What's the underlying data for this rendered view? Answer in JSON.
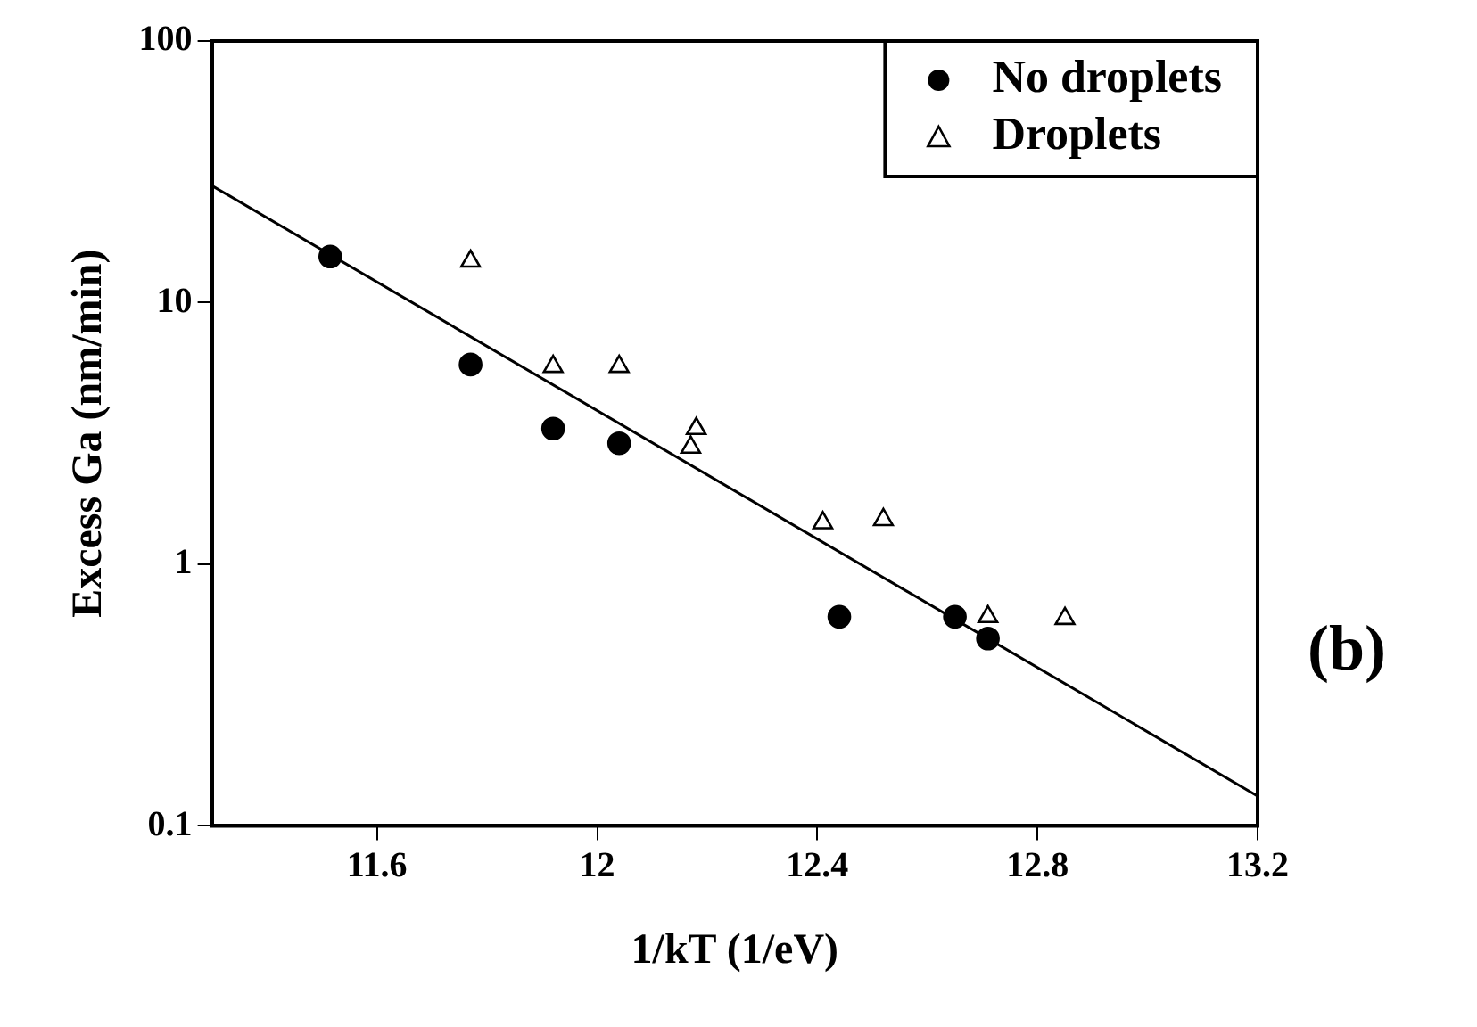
{
  "chart_data": {
    "type": "scatter",
    "xlabel": "1/kT (1/eV)",
    "ylabel": "Excess Ga (nm/min)",
    "xlim": [
      11.3,
      13.2
    ],
    "ylim": [
      0.1,
      100
    ],
    "log": "y",
    "xticks": [
      11.6,
      12,
      12.4,
      12.8,
      13.2
    ],
    "yticks": [
      {
        "value": 0.1,
        "label": "0.1"
      },
      1,
      10,
      100
    ],
    "legend": "top right",
    "grid": false,
    "series": [
      {
        "name": "No droplets",
        "color": "#000000",
        "marker": "circle",
        "x": [
          11.515,
          11.77,
          11.92,
          12.04,
          12.44,
          12.65,
          12.71
        ],
        "values": [
          15,
          5.8,
          3.3,
          2.9,
          0.63,
          0.63,
          0.52
        ]
      },
      {
        "name": "Droplets",
        "color": "#000000",
        "marker": "triangle",
        "x": [
          11.77,
          11.92,
          12.04,
          12.18,
          12.17,
          12.41,
          12.52,
          12.71,
          12.85
        ],
        "values": [
          14.4,
          5.7,
          5.7,
          3.3,
          2.8,
          1.44,
          1.48,
          0.63,
          0.62
        ]
      },
      {
        "type": "line",
        "color": "#000000",
        "marker": "none",
        "line_style": "solid",
        "x": [
          11.3,
          13.2
        ],
        "values": [
          28,
          0.13
        ]
      }
    ],
    "annotations": [
      "(b)"
    ]
  }
}
